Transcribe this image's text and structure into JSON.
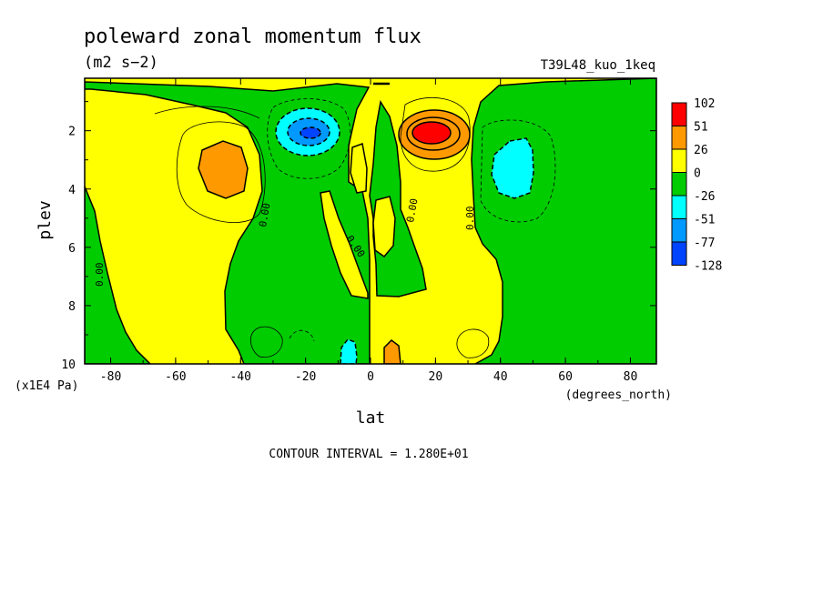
{
  "chart_data": {
    "type": "heatmap",
    "title": "poleward zonal momentum flux",
    "units": "(m2 s−2)",
    "run_label": "T39L48_kuo_1keq",
    "xlabel": "lat",
    "x_units": "(degrees_north)",
    "ylabel": "plev",
    "y_units": "(x1E4 Pa)",
    "footer": "CONTOUR INTERVAL = 1.280E+01",
    "xlim": [
      -88,
      88
    ],
    "ylim": [
      10,
      0.2
    ],
    "y_reversed": true,
    "x_ticks": [
      "-80",
      "-60",
      "-40",
      "-20",
      "0",
      "20",
      "40",
      "60",
      "80"
    ],
    "y_ticks": [
      "2",
      "4",
      "6",
      "8",
      "10"
    ],
    "contour_label": "0.00",
    "legend": {
      "labels": [
        "102",
        "51",
        "26",
        "0",
        "-26",
        "-51",
        "-77",
        "-128"
      ],
      "colors": [
        "#ff0000",
        "#ff9900",
        "#ffff00",
        "#00cc00",
        "#00ffff",
        "#0099ff",
        "#0044ff"
      ]
    }
  }
}
